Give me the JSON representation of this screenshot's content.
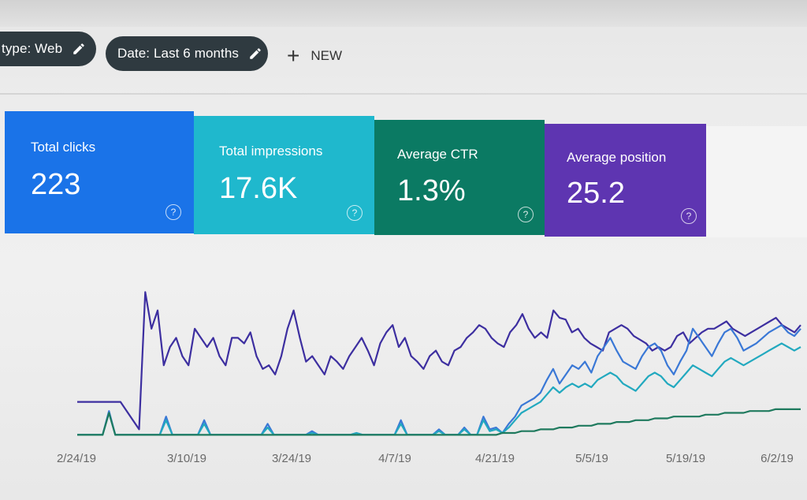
{
  "filters": {
    "type_chip": "type: Web",
    "date_chip": "Date: Last 6 months",
    "new_button": "NEW"
  },
  "metrics": [
    {
      "label": "Total clicks",
      "value": "223",
      "color": "#1a73e8"
    },
    {
      "label": "Total impressions",
      "value": "17.6K",
      "color": "#1fb8cd"
    },
    {
      "label": "Average CTR",
      "value": "1.3%",
      "color": "#0b7a63"
    },
    {
      "label": "Average position",
      "value": "25.2",
      "color": "#5e35b1"
    }
  ],
  "help_icon": "help-circle-icon",
  "chart_data": {
    "type": "line",
    "x_ticks": [
      "2/24/19",
      "3/10/19",
      "3/24/19",
      "4/7/19",
      "4/21/19",
      "5/5/19",
      "5/19/19",
      "6/2/19"
    ],
    "ylim": [
      0,
      100
    ],
    "grid": false,
    "series": [
      {
        "key": "position",
        "color": "#3d2fa0",
        "values": [
          20,
          20,
          20,
          20,
          20,
          20,
          20,
          20,
          15,
          10,
          5,
          80,
          60,
          70,
          40,
          50,
          55,
          45,
          40,
          60,
          55,
          50,
          55,
          45,
          40,
          55,
          55,
          52,
          58,
          45,
          38,
          40,
          35,
          45,
          60,
          70,
          55,
          42,
          45,
          40,
          35,
          45,
          42,
          38,
          45,
          50,
          55,
          48,
          40,
          52,
          58,
          62,
          50,
          55,
          45,
          42,
          38,
          45,
          48,
          42,
          40,
          48,
          50,
          55,
          58,
          62,
          60,
          55,
          52,
          50,
          58,
          62,
          68,
          60,
          55,
          58,
          55,
          70,
          66,
          65,
          58,
          60,
          55,
          52,
          50,
          48,
          58,
          60,
          62,
          60,
          56,
          54,
          52,
          48,
          50,
          48,
          50,
          56,
          58,
          52,
          55,
          58,
          60,
          60,
          62,
          64,
          60,
          58,
          56,
          58,
          60,
          62,
          64,
          66,
          62,
          60,
          58,
          62
        ]
      },
      {
        "key": "clicks",
        "color": "#3a78d6",
        "values": [
          2,
          2,
          2,
          2,
          2,
          15,
          2,
          2,
          2,
          2,
          2,
          2,
          2,
          2,
          12,
          2,
          2,
          2,
          2,
          2,
          10,
          2,
          2,
          2,
          2,
          2,
          2,
          2,
          2,
          2,
          8,
          2,
          2,
          2,
          2,
          2,
          2,
          4,
          2,
          2,
          2,
          2,
          2,
          2,
          3,
          2,
          2,
          2,
          2,
          2,
          2,
          10,
          2,
          2,
          2,
          2,
          2,
          5,
          2,
          2,
          2,
          6,
          2,
          2,
          12,
          5,
          6,
          3,
          8,
          12,
          18,
          20,
          22,
          25,
          32,
          38,
          30,
          35,
          40,
          38,
          42,
          36,
          45,
          50,
          55,
          48,
          42,
          40,
          38,
          45,
          50,
          52,
          48,
          40,
          35,
          42,
          48,
          60,
          55,
          50,
          45,
          52,
          58,
          60,
          55,
          48,
          50,
          52,
          55,
          58,
          60,
          62,
          58,
          56,
          60
        ]
      },
      {
        "key": "impressions",
        "color": "#22a9bf",
        "values": [
          2,
          2,
          2,
          2,
          2,
          14,
          2,
          2,
          2,
          2,
          2,
          2,
          2,
          2,
          10,
          2,
          2,
          2,
          2,
          2,
          8,
          2,
          2,
          2,
          2,
          2,
          2,
          2,
          2,
          2,
          6,
          2,
          2,
          2,
          2,
          2,
          2,
          3,
          2,
          2,
          2,
          2,
          2,
          2,
          3,
          2,
          2,
          2,
          2,
          2,
          2,
          8,
          2,
          2,
          2,
          2,
          2,
          4,
          2,
          2,
          2,
          5,
          2,
          2,
          10,
          4,
          5,
          3,
          6,
          10,
          14,
          16,
          18,
          20,
          24,
          28,
          25,
          28,
          30,
          28,
          30,
          28,
          32,
          34,
          36,
          34,
          30,
          28,
          26,
          30,
          34,
          36,
          34,
          30,
          28,
          32,
          36,
          40,
          38,
          36,
          34,
          38,
          42,
          44,
          42,
          40,
          42,
          44,
          46,
          48,
          50,
          52,
          50,
          48,
          50
        ]
      },
      {
        "key": "ctr",
        "color": "#1f7a5e",
        "values": [
          2,
          2,
          2,
          2,
          2,
          14,
          2,
          2,
          2,
          2,
          2,
          2,
          2,
          2,
          2,
          2,
          2,
          2,
          2,
          2,
          2,
          2,
          2,
          2,
          2,
          2,
          2,
          2,
          2,
          2,
          2,
          2,
          2,
          2,
          2,
          2,
          2,
          2,
          2,
          2,
          2,
          2,
          2,
          2,
          2,
          2,
          2,
          2,
          2,
          2,
          2,
          2,
          2,
          2,
          2,
          2,
          2,
          2,
          2,
          2,
          2,
          2,
          2,
          2,
          2,
          2,
          2,
          3,
          3,
          3,
          4,
          4,
          4,
          5,
          5,
          5,
          6,
          6,
          6,
          7,
          7,
          7,
          8,
          8,
          8,
          9,
          9,
          9,
          10,
          10,
          10,
          11,
          11,
          11,
          12,
          12,
          12,
          12,
          12,
          13,
          13,
          13,
          14,
          14,
          14,
          14,
          15,
          15,
          15,
          15,
          16,
          16,
          16,
          16,
          16
        ]
      }
    ]
  }
}
